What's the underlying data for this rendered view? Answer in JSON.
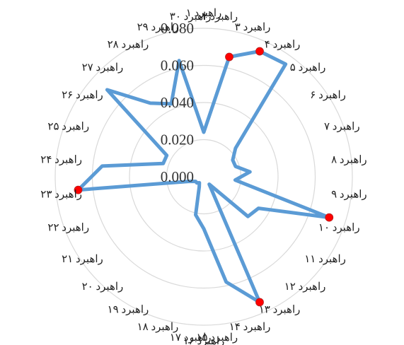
{
  "chart_data": {
    "type": "radar",
    "categories": [
      "راهبرد ۱",
      "راهبرد ۲",
      "راهبرد ۳",
      "راهبرد ۴",
      "راهبرد ۵",
      "راهبرد ۶",
      "راهبرد ۷",
      "راهبرد ۸",
      "راهبرد ۹",
      "راهبرد ۱۰",
      "راهبرد ۱۱",
      "راهبرد ۱۲",
      "راهبرد ۱۳",
      "راهبرد ۱۴",
      "راهبرد ۱۵",
      "راهبرد ۱۶",
      "راهبرد ۱۷",
      "راهبرد ۱۸",
      "راهبرد ۱۹",
      "راهبرد ۲۰",
      "راهبرد ۲۱",
      "راهبرد ۲۲",
      "راهبرد ۲۳",
      "راهبرد ۲۴",
      "راهبرد ۲۵",
      "راهبرد ۲۶",
      "راهبرد ۲۷",
      "راهبرد ۲۸",
      "راهبرد ۲۹",
      "راهبرد ۳۰"
    ],
    "series": [
      {
        "values": [
          0.024,
          0.066,
          0.074,
          0.075,
          0.023,
          0.018,
          0.018,
          0.025,
          0.017,
          0.071,
          0.034,
          0.032,
          0.005,
          0.074,
          0.058,
          0.028,
          0.021,
          0.006,
          0.004,
          0.005,
          0.005,
          0.008,
          0.068,
          0.055,
          0.023,
          0.023,
          0.07,
          0.049,
          0.043,
          0.064
        ],
        "highlight_indices": [
          1,
          2,
          9,
          13,
          22
        ]
      }
    ],
    "yticks": [
      "0.000",
      "0.020",
      "0.040",
      "0.060",
      "0.080"
    ],
    "ylim": [
      0,
      0.08
    ],
    "grid": true,
    "colors": {
      "line": "#5b9bd5",
      "highlight": "#ff0000",
      "grid": "#d9d9d9"
    }
  }
}
